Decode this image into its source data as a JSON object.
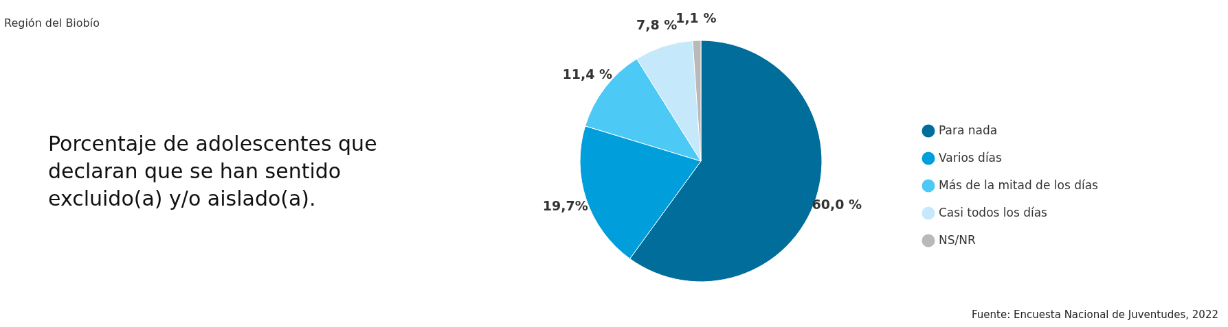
{
  "chart_data": {
    "type": "pie",
    "subtitle": "Región del Biobío",
    "title": "Porcentaje de adolescentes que declaran que se han sentido excluido(a) y/o aislado(a).",
    "categories": [
      "Para nada",
      "Varios días",
      "Más de la mitad de los días",
      "Casi todos los días",
      "NS/NR"
    ],
    "values": [
      60.0,
      19.7,
      11.4,
      7.8,
      1.1
    ],
    "value_labels": [
      "60,0 %",
      "19,7%",
      "11,4 %",
      "7,8 %",
      "1,1 %"
    ],
    "colors": [
      "#006d9b",
      "#009fdc",
      "#4dc9f6",
      "#c5e8fb",
      "#b9b9b9"
    ],
    "legend": "right",
    "annotations": [
      "Fuente: Encuesta Nacional de Juventudes, 2022"
    ]
  }
}
